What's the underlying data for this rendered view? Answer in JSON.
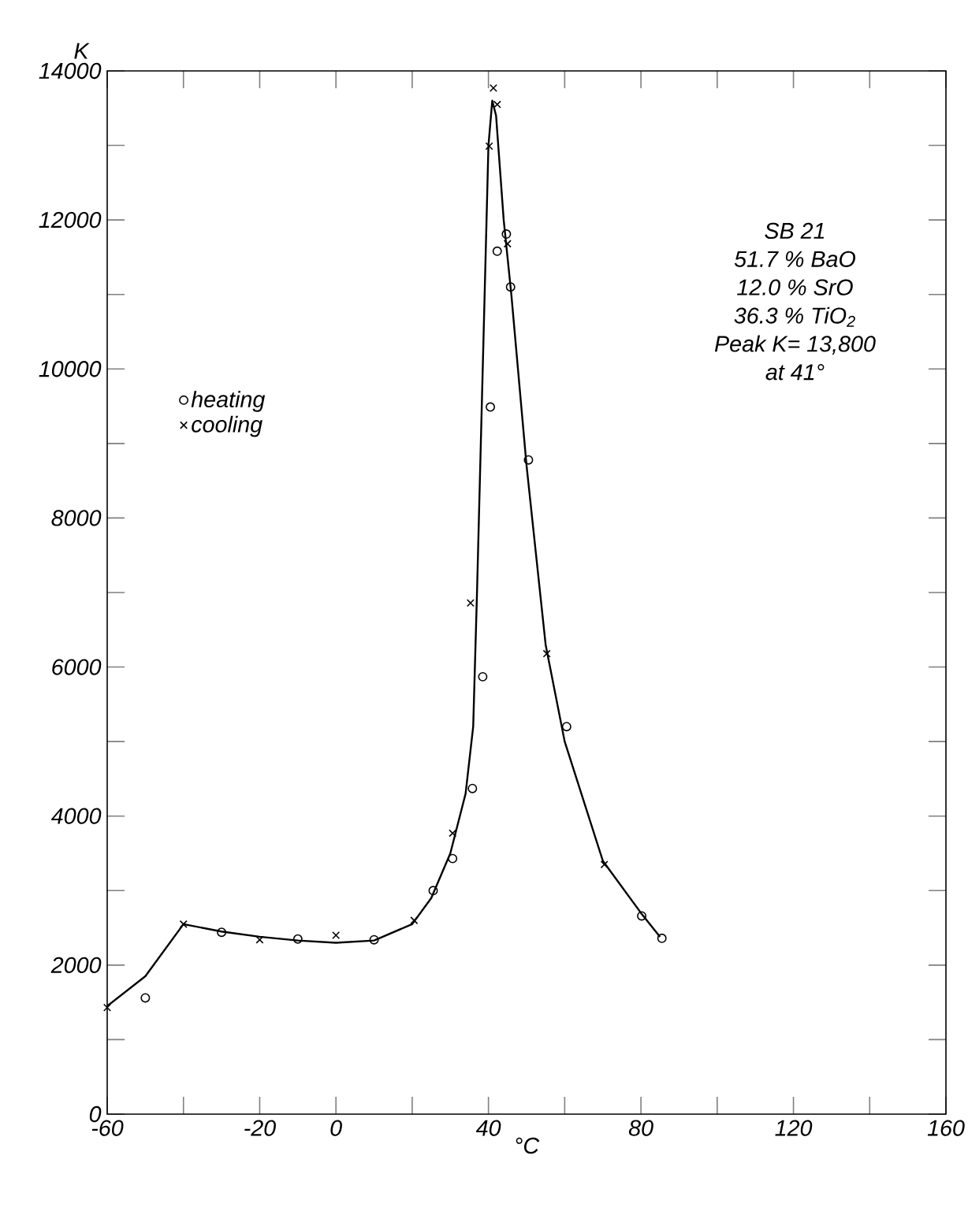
{
  "chart_data": {
    "type": "scatter",
    "xlabel": "°C",
    "ylabel": "K",
    "xlim": [
      -60,
      160
    ],
    "ylim": [
      0,
      14000
    ],
    "xticks": [
      -60,
      {
        "value": -40,
        "label": null
      },
      -20,
      0,
      {
        "value": 20,
        "label": null
      },
      40,
      {
        "value": 60,
        "label": null
      },
      80,
      {
        "value": 100,
        "label": null
      },
      120,
      {
        "value": 140,
        "label": null
      },
      160
    ],
    "yticks": [
      0,
      {
        "value": 1000,
        "label": null
      },
      2000,
      {
        "value": 3000,
        "label": null
      },
      4000,
      {
        "value": 5000,
        "label": null
      },
      6000,
      {
        "value": 7000,
        "label": null
      },
      8000,
      {
        "value": 9000,
        "label": null
      },
      10000,
      {
        "value": 11000,
        "label": null
      },
      12000,
      {
        "value": 13000,
        "label": null
      },
      14000
    ],
    "grid": false,
    "legend": "left",
    "annotations": [
      "SB 21",
      "51.7 % BaO",
      "12.0 % SrO",
      "36.3 % TiO$_{2}$",
      "Peak K= 13,800",
      "at 41°"
    ],
    "series": [
      {
        "name": "heating",
        "marker": "circle",
        "color": "#000000",
        "x": [
          -50,
          -30,
          -10,
          10,
          25.5,
          30.6,
          35.8,
          38.5,
          40.5,
          42.3,
          44.7,
          45.8,
          50.5,
          60.5,
          80.2,
          85.5
        ],
        "values": [
          1560,
          2440,
          2350,
          2340,
          3000,
          3430,
          4370,
          5870,
          9490,
          11580,
          11810,
          11100,
          8780,
          5200,
          2660,
          2360
        ]
      },
      {
        "name": "cooling",
        "marker": "cross",
        "color": "#000000",
        "x": [
          -60,
          -40,
          -20,
          0,
          20.5,
          30.6,
          35.3,
          40.2,
          41.3,
          42.3,
          45,
          55.3,
          70.4
        ],
        "values": [
          1430,
          2550,
          2340,
          2400,
          2600,
          3770,
          6860,
          12990,
          13770,
          13550,
          11680,
          6180,
          3350
        ]
      },
      {
        "type": "line",
        "marker": "none",
        "line_style": "solid",
        "color": "#000000",
        "x": [
          -60,
          -50,
          -40,
          -30,
          -20,
          -10,
          0,
          10,
          20,
          25,
          30,
          34,
          36,
          37,
          38,
          39,
          40,
          41,
          42,
          44,
          46,
          50,
          55,
          60,
          70,
          80,
          85
        ],
        "values": [
          1450,
          1850,
          2550,
          2450,
          2380,
          2330,
          2300,
          2330,
          2550,
          2900,
          3500,
          4300,
          5200,
          7000,
          9000,
          11000,
          13000,
          13600,
          13400,
          12000,
          11000,
          8700,
          6300,
          5000,
          3400,
          2700,
          2380
        ]
      }
    ]
  }
}
